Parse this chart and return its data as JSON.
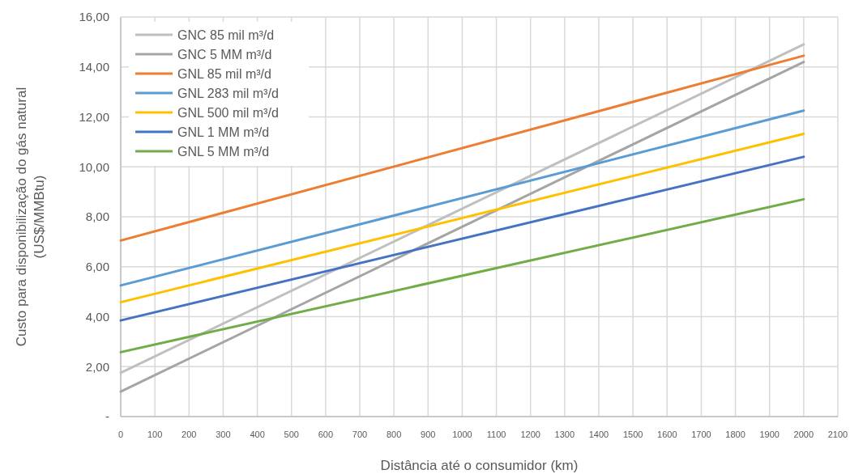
{
  "chart_data": {
    "type": "line",
    "xlabel": "Distância até o consumidor (km)",
    "ylabel": "Custo para disponibilização do gás natural (US$/MMBtu)",
    "x": [
      0,
      2000
    ],
    "series": [
      {
        "name": "GNC 85 mil m³/d",
        "color": "#bfbfbf",
        "values": [
          1.75,
          14.9
        ]
      },
      {
        "name": "GNC 5 MM m³/d",
        "color": "#a5a5a5",
        "values": [
          1.0,
          14.2
        ]
      },
      {
        "name": "GNL 85 mil m³/d",
        "color": "#ed7d31",
        "values": [
          7.05,
          14.45
        ]
      },
      {
        "name": "GNL 283 mil m³/d",
        "color": "#5b9bd5",
        "values": [
          5.25,
          12.25
        ]
      },
      {
        "name": "GNL 500 mil m³/d",
        "color": "#ffc000",
        "values": [
          4.58,
          11.32
        ]
      },
      {
        "name": "GNL 1 MM m³/d",
        "color": "#4472c4",
        "values": [
          3.85,
          10.4
        ]
      },
      {
        "name": "GNL 5 MM m³/d",
        "color": "#70ad47",
        "values": [
          2.58,
          8.7
        ]
      }
    ],
    "xlim": [
      0,
      2100
    ],
    "xticks": [
      0,
      100,
      200,
      300,
      400,
      500,
      600,
      700,
      800,
      900,
      1000,
      1100,
      1200,
      1300,
      1400,
      1500,
      1600,
      1700,
      1800,
      1900,
      2000,
      2100
    ],
    "ylim": [
      0,
      16
    ],
    "yticks": [
      {
        "value": 0,
        "label": "-"
      },
      {
        "value": 2,
        "label": "2,00"
      },
      {
        "value": 4,
        "label": "4,00"
      },
      {
        "value": 6,
        "label": "6,00"
      },
      {
        "value": 8,
        "label": "8,00"
      },
      {
        "value": 10,
        "label": "10,00"
      },
      {
        "value": 12,
        "label": "12,00"
      },
      {
        "value": 14,
        "label": "14,00"
      },
      {
        "value": 16,
        "label": "16,00"
      }
    ],
    "grid": true,
    "legend": "top left",
    "marker": "none",
    "line_style": "solid"
  }
}
